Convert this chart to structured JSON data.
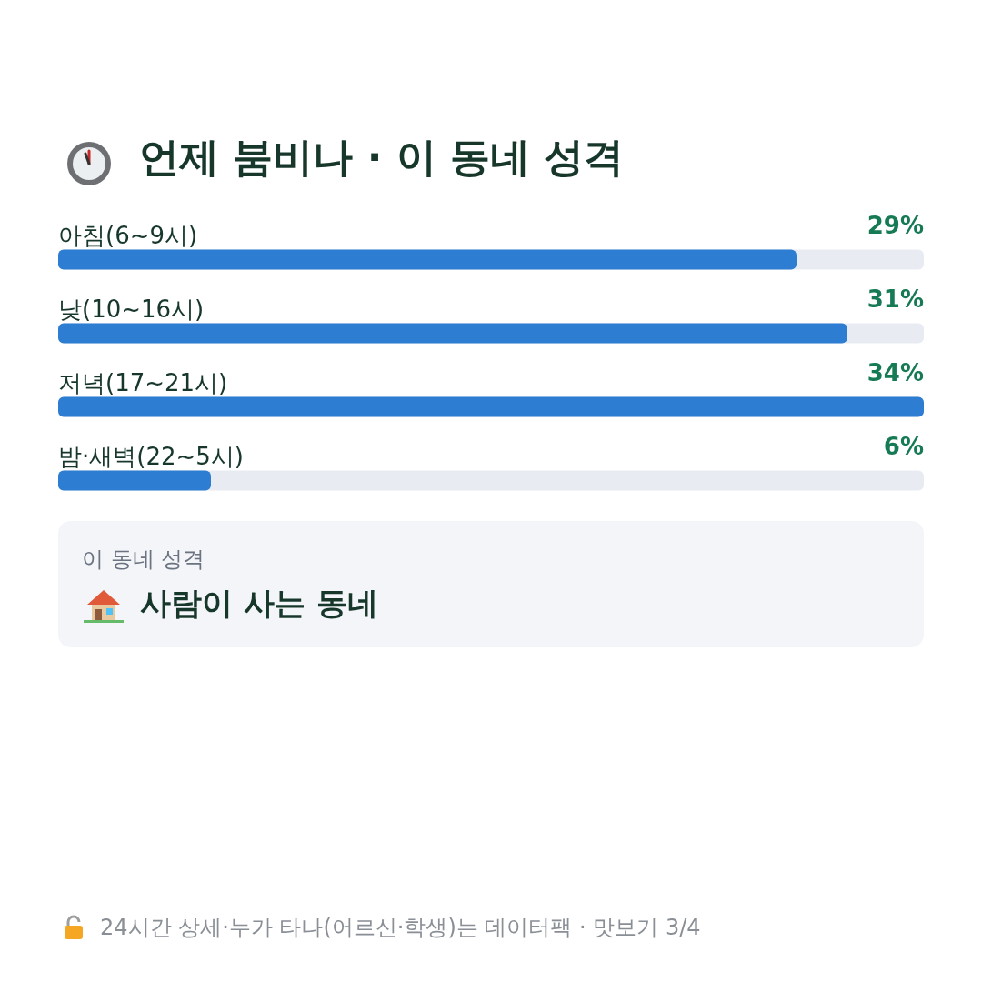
{
  "chart_data": {
    "type": "bar",
    "orientation": "horizontal",
    "title": "언제 붐비나 · 이 동네 성격",
    "categories": [
      "아침(6~9시)",
      "낮(10~16시)",
      "저녁(17~21시)",
      "밤·새벽(22~5시)"
    ],
    "values": [
      29,
      31,
      34,
      6
    ],
    "color": "#2d7dd2",
    "value_labels": [
      "29%",
      "31%",
      "34%",
      "6%"
    ],
    "tick_labels": "y",
    "annotations": [
      "이 동네 성격",
      "사람이 사는 동네",
      "24시간 상세·누가 타나(어르신·학생)는 데이터팩 · 맛보기 3/4"
    ]
  }
}
